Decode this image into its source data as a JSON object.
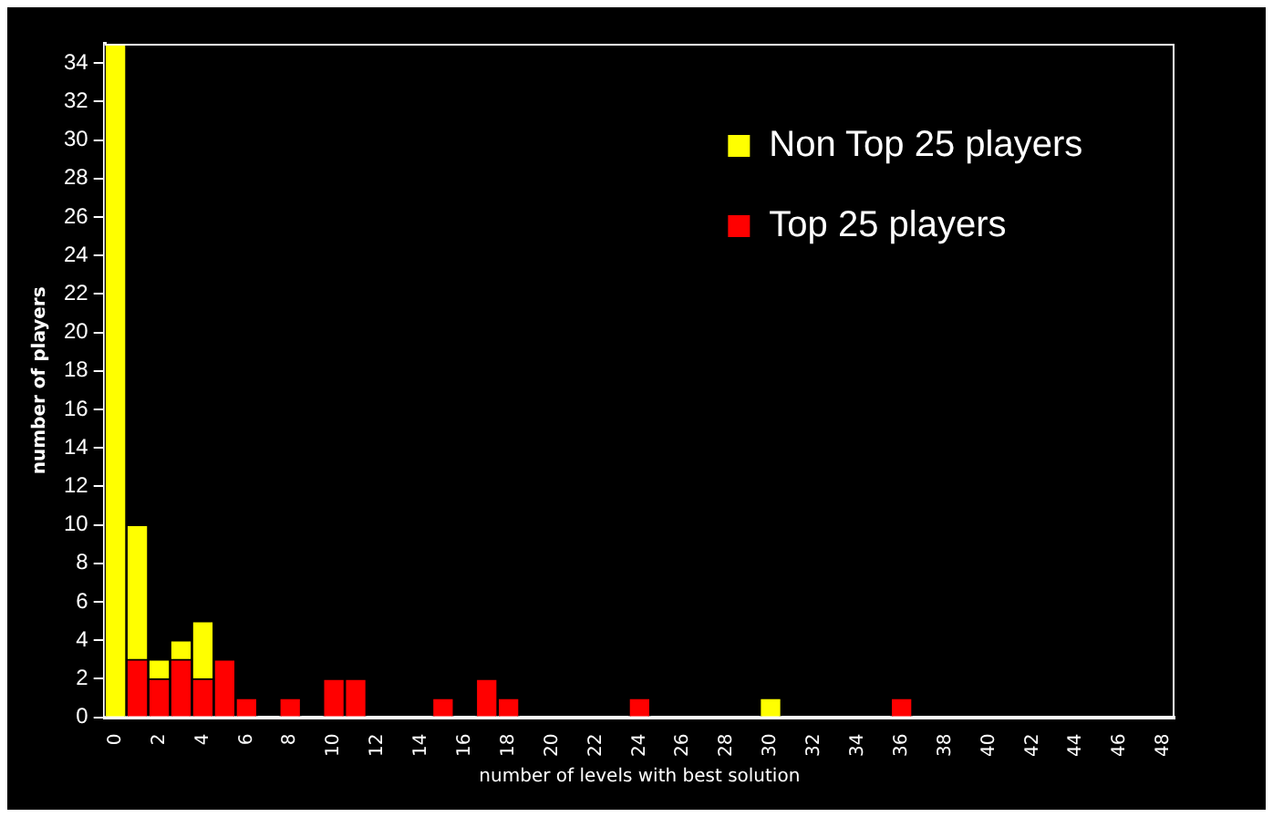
{
  "chart_data": {
    "type": "bar",
    "stacked": true,
    "xlabel": "number of levels with best solution",
    "ylabel": "number of players",
    "categories": [
      "0",
      null,
      "2",
      null,
      "4",
      null,
      "6",
      null,
      "8",
      null,
      "10",
      null,
      "12",
      null,
      "14",
      null,
      "16",
      null,
      "18",
      null,
      "20",
      null,
      "22",
      null,
      "24",
      null,
      "26",
      null,
      "28",
      null,
      "30",
      null,
      "32",
      null,
      "34",
      null,
      "36",
      null,
      "38",
      null,
      "40",
      null,
      "42",
      null,
      "44",
      null,
      "46",
      null,
      "48"
    ],
    "series": [
      {
        "name": "Top 25 players",
        "color": "#ff0000",
        "values": [
          0,
          3,
          2,
          3,
          2,
          3,
          1,
          0,
          1,
          0,
          2,
          2,
          0,
          0,
          0,
          1,
          0,
          2,
          1,
          0,
          0,
          0,
          0,
          0,
          1,
          0,
          0,
          0,
          0,
          0,
          0,
          0,
          0,
          0,
          0,
          0,
          1,
          0,
          0,
          0,
          0,
          0,
          0,
          0,
          0,
          0,
          0,
          0,
          0
        ]
      },
      {
        "name": "Non Top 25 players",
        "color": "#ffff00",
        "values": [
          35,
          7,
          1,
          1,
          3,
          0,
          0,
          0,
          0,
          0,
          0,
          0,
          0,
          0,
          0,
          0,
          0,
          0,
          0,
          0,
          0,
          0,
          0,
          0,
          0,
          0,
          0,
          0,
          0,
          0,
          1,
          0,
          0,
          0,
          0,
          0,
          0,
          0,
          0,
          0,
          0,
          0,
          0,
          0,
          0,
          0,
          0,
          0,
          0
        ]
      }
    ],
    "ylim": [
      0,
      35
    ],
    "yticks": [
      0,
      2,
      4,
      6,
      8,
      10,
      12,
      14,
      16,
      18,
      20,
      22,
      24,
      26,
      28,
      30,
      32,
      34
    ],
    "grid": false,
    "legend": "top right"
  }
}
